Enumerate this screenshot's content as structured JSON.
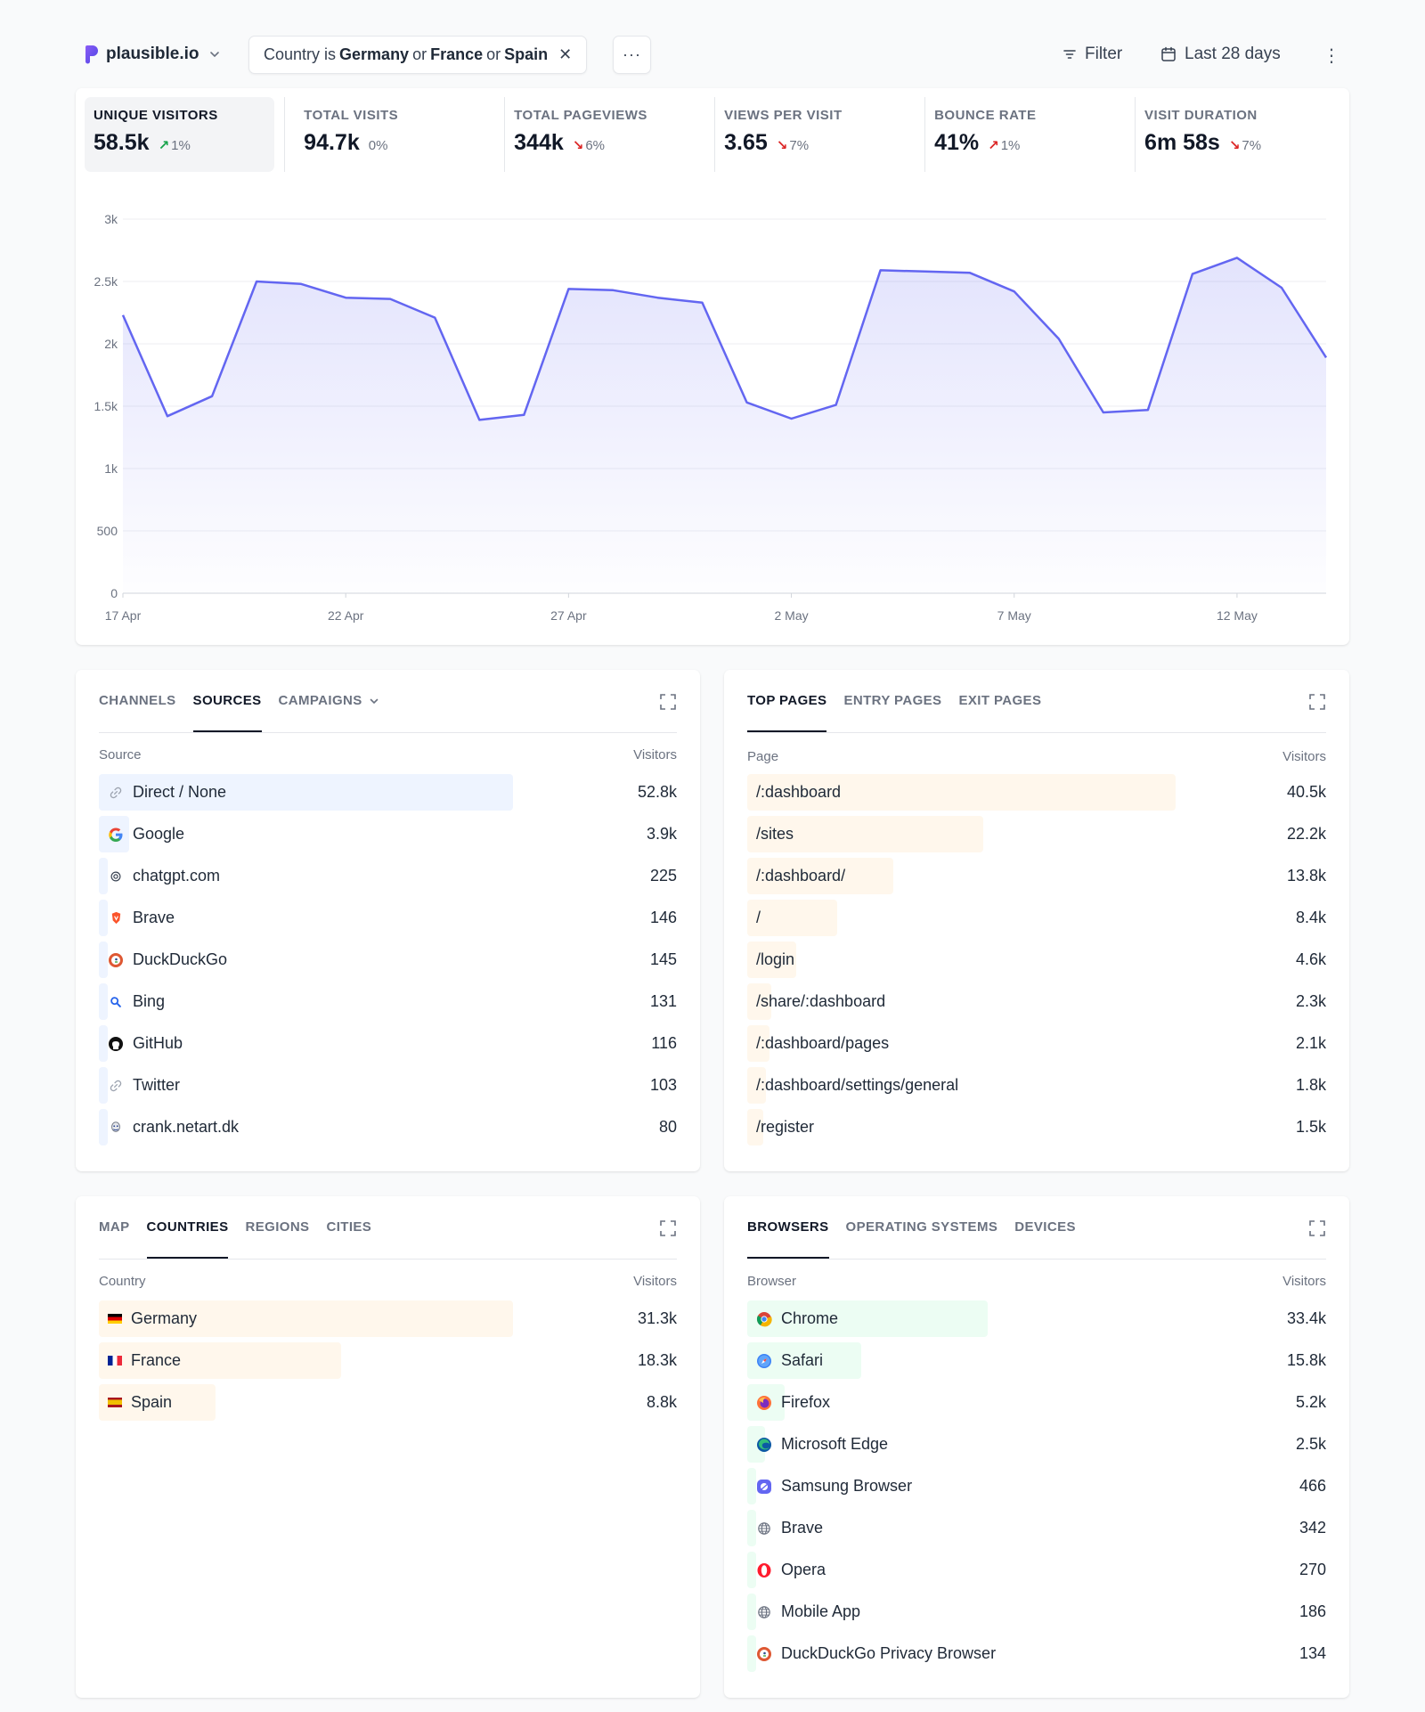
{
  "header": {
    "site": "plausible.io",
    "filter_prefix": "Country is",
    "filter_v1": "Germany",
    "filter_or1": "or",
    "filter_v2": "France",
    "filter_or2": "or",
    "filter_v3": "Spain",
    "more_label": "···",
    "filter_label": "Filter",
    "date_label": "Last 28 days"
  },
  "stats": [
    {
      "label": "UNIQUE VISITORS",
      "value": "58.5k",
      "change": "1%",
      "trend": "up-good"
    },
    {
      "label": "TOTAL VISITS",
      "value": "94.7k",
      "change": "0%",
      "trend": "none"
    },
    {
      "label": "TOTAL PAGEVIEWS",
      "value": "344k",
      "change": "6%",
      "trend": "down-bad"
    },
    {
      "label": "VIEWS PER VISIT",
      "value": "3.65",
      "change": "7%",
      "trend": "down-bad"
    },
    {
      "label": "BOUNCE RATE",
      "value": "41%",
      "change": "1%",
      "trend": "up-bad"
    },
    {
      "label": "VISIT DURATION",
      "value": "6m 58s",
      "change": "7%",
      "trend": "down-bad"
    }
  ],
  "chart_data": {
    "type": "area",
    "x": [
      "17 Apr",
      "18 Apr",
      "19 Apr",
      "20 Apr",
      "21 Apr",
      "22 Apr",
      "23 Apr",
      "24 Apr",
      "25 Apr",
      "26 Apr",
      "27 Apr",
      "28 Apr",
      "29 Apr",
      "30 Apr",
      "1 May",
      "2 May",
      "3 May",
      "4 May",
      "5 May",
      "6 May",
      "7 May",
      "8 May",
      "9 May",
      "10 May",
      "11 May",
      "12 May",
      "13 May",
      "14 May"
    ],
    "values": [
      2230,
      1420,
      1580,
      2500,
      2480,
      2370,
      2360,
      2210,
      1390,
      1430,
      2440,
      2430,
      2370,
      2330,
      1530,
      1400,
      1510,
      2590,
      2580,
      2570,
      2420,
      2040,
      1450,
      1470,
      2560,
      2690,
      2450,
      1890
    ],
    "x_ticks": [
      "17 Apr",
      "22 Apr",
      "27 Apr",
      "2 May",
      "7 May",
      "12 May"
    ],
    "y_ticks": [
      "0",
      "500",
      "1k",
      "1.5k",
      "2k",
      "2.5k",
      "3k"
    ],
    "ylim": [
      0,
      3000
    ],
    "grid": true,
    "color": "#6366f1"
  },
  "sources": {
    "tabs": [
      "CHANNELS",
      "SOURCES",
      "CAMPAIGNS"
    ],
    "active": 1,
    "col_label": "Source",
    "col_value": "Visitors",
    "rows": [
      {
        "label": "Direct / None",
        "value": "52.8k",
        "icon": "link-icon",
        "fraction": 1.0
      },
      {
        "label": "Google",
        "value": "3.9k",
        "icon": "google-icon",
        "fraction": 0.074
      },
      {
        "label": "chatgpt.com",
        "value": "225",
        "icon": "openai-icon",
        "fraction": 0.004
      },
      {
        "label": "Brave",
        "value": "146",
        "icon": "brave-icon",
        "fraction": 0.003
      },
      {
        "label": "DuckDuckGo",
        "value": "145",
        "icon": "duckduckgo-icon",
        "fraction": 0.003
      },
      {
        "label": "Bing",
        "value": "131",
        "icon": "bing-icon",
        "fraction": 0.002
      },
      {
        "label": "GitHub",
        "value": "116",
        "icon": "github-icon",
        "fraction": 0.002
      },
      {
        "label": "Twitter",
        "value": "103",
        "icon": "link-icon",
        "fraction": 0.002
      },
      {
        "label": "crank.netart.dk",
        "value": "80",
        "icon": "crank-icon",
        "fraction": 0.002
      }
    ]
  },
  "pages": {
    "tabs": [
      "TOP PAGES",
      "ENTRY PAGES",
      "EXIT PAGES"
    ],
    "active": 0,
    "col_label": "Page",
    "col_value": "Visitors",
    "rows": [
      {
        "label": "/:dashboard",
        "value": "40.5k",
        "fraction": 1.0
      },
      {
        "label": "/sites",
        "value": "22.2k",
        "fraction": 0.55
      },
      {
        "label": "/:dashboard/",
        "value": "13.8k",
        "fraction": 0.34
      },
      {
        "label": "/",
        "value": "8.4k",
        "fraction": 0.21
      },
      {
        "label": "/login",
        "value": "4.6k",
        "fraction": 0.114
      },
      {
        "label": "/share/:dashboard",
        "value": "2.3k",
        "fraction": 0.057
      },
      {
        "label": "/:dashboard/pages",
        "value": "2.1k",
        "fraction": 0.052
      },
      {
        "label": "/:dashboard/settings/general",
        "value": "1.8k",
        "fraction": 0.044
      },
      {
        "label": "/register",
        "value": "1.5k",
        "fraction": 0.037
      }
    ]
  },
  "locations": {
    "tabs": [
      "MAP",
      "COUNTRIES",
      "REGIONS",
      "CITIES"
    ],
    "active": 1,
    "col_label": "Country",
    "col_value": "Visitors",
    "rows": [
      {
        "label": "Germany",
        "value": "31.3k",
        "flag": "de",
        "fraction": 1.0
      },
      {
        "label": "France",
        "value": "18.3k",
        "flag": "fr",
        "fraction": 0.585
      },
      {
        "label": "Spain",
        "value": "8.8k",
        "flag": "es",
        "fraction": 0.281
      }
    ]
  },
  "browsers": {
    "tabs": [
      "BROWSERS",
      "OPERATING SYSTEMS",
      "DEVICES"
    ],
    "active": 0,
    "col_label": "Browser",
    "col_value": "Visitors",
    "rows": [
      {
        "label": "Chrome",
        "value": "33.4k",
        "icon": "chrome-icon",
        "fraction": 0.58
      },
      {
        "label": "Safari",
        "value": "15.8k",
        "icon": "safari-icon",
        "fraction": 0.275
      },
      {
        "label": "Firefox",
        "value": "5.2k",
        "icon": "firefox-icon",
        "fraction": 0.09
      },
      {
        "label": "Microsoft Edge",
        "value": "2.5k",
        "icon": "edge-icon",
        "fraction": 0.043
      },
      {
        "label": "Samsung Browser",
        "value": "466",
        "icon": "samsung-icon",
        "fraction": 0.008
      },
      {
        "label": "Brave",
        "value": "342",
        "icon": "globe-icon",
        "fraction": 0.006
      },
      {
        "label": "Opera",
        "value": "270",
        "icon": "opera-icon",
        "fraction": 0.005
      },
      {
        "label": "Mobile App",
        "value": "186",
        "icon": "globe-icon",
        "fraction": 0.003
      },
      {
        "label": "DuckDuckGo Privacy Browser",
        "value": "134",
        "icon": "duckduckgo-icon",
        "fraction": 0.002
      }
    ]
  }
}
